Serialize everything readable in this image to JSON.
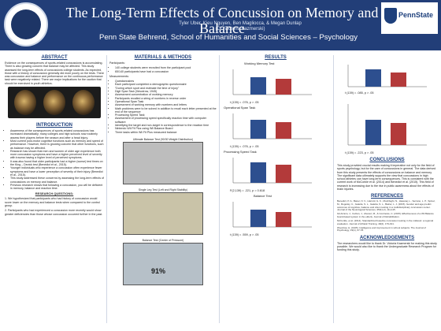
{
  "header": {
    "title": "The Long-Term Effects of Concussion on Memory and Balance",
    "authors": "Tyler Uber, Kieu Nguyen, Ben Magliocca, & Megan Dunlap",
    "advisor": "(Dr. Victoria Kazmerski)",
    "affiliation": "Penn State Behrend, School of Humanities and Social Sciences – Psychology",
    "logo_text": "PennState",
    "header_color": "#223e78",
    "accent_color": "#1e407c"
  },
  "abstract": {
    "heading": "ABSTRACT",
    "text": "Evidence on the consequences of sports-related concussions is accumulating. There is also growing concern that balance may be affected. This study assessed the long-term effects of concussions college students. As expected, those with a history of concussion generally did more poorly on the tests. There was concussion and balance and performance on the continuous performance task were negatively related. There are major implications for the caution that should be exercised in youth athletics."
  },
  "introduction": {
    "heading": "INTRODUCTION",
    "bullets": [
      "Awareness of the consequences of sports-related concussions has increased dramatically; many colleges and high schools now routinely assess their players before the season and after a head injury.",
      "Most current post-motor cognitive functions such as memory and speed of performance. However, there is growing concern that other functions, such as balance may be affected.",
      "Research has shown that men and women of older age experience both more concussion symptoms and have a higher perceived level of severity with trauma having a higher level of perceived symptoms.",
      "It was also found that older participants had a higher (worse) test times on the King – Devick test (Benedict et al., 2015).",
      "Younger individuals who experience a concussion often experience fewer symptoms and have a lower perception of severity of their injury (Benedict et al., 2015).",
      "This study addressed these concerns by assessing the long-term effects of concussions on memory and balance.",
      "Previous research shows that following a concussion, you will be deficient in memory, balance and reaction time."
    ]
  },
  "questions": {
    "heading": "RESEARCH QUESTIONS:",
    "items": [
      "1. We hypothesized that participants who had history of concussion would score lower on the memory and balance tests when compared to the control group.",
      "2. Participants who had experienced a concussion more recently would show greater deficiencies than those whose concussion occurred further in the past."
    ]
  },
  "methods": {
    "heading": "MATERIALS & METHODS",
    "participants_label": "Participants:",
    "participants": [
      "140 college students were recruited from the participant pool",
      "65/140 participants have had a concussion"
    ],
    "measurements_label": "Measurements:",
    "measurements": [
      "Questionnaires",
      "Each participant completed a demographic questionnaire",
      "\"During which sport and estimate the time of injury\"",
      "Digit Span Task (Woodrow, 1945)",
      "Assessment concentration of working memory",
      "Participants recalled a string of numbers in reverse order",
      "Operational Span Task",
      "Assessment of working memory with numbers and letters",
      "Math problems were to be solved in addition to recall each letter presented at the end of the sequence",
      "Processing Speed Task",
      "Assessment of processing speed specifically reaction time with computer software",
      "Identifying the target and non-target in correspondence to the reaction time",
      "Nintendo Wii Fit Plus using Wii Balance Board",
      "Three tasks within Wii Fit Plus measured balance"
    ],
    "photo_labels": [
      "Ultimate Balance Test (90/30 Weight Distribution)",
      "Single Leg Test (Left and Right Stability)",
      "Balance Test (Center of Pressure)"
    ],
    "photo_value": "91%"
  },
  "results": {
    "heading": "RESULTS",
    "charts": [
      {
        "label": "Working Memory Test",
        "stat": "t (139) = .076, p > .05"
      },
      {
        "label": "Digit Span Task",
        "stat": "t (139) = .076, p > .05"
      },
      {
        "label": "Operational Span Task",
        "stat": "t (139) = .076, p > .05"
      },
      {
        "label": "Target Reaction Test",
        "stat": "t (139) = .076, p > .05"
      },
      {
        "label": "Processing Speed Task",
        "stat": "F(2,139) = .221, p = 0.618"
      },
      {
        "label": "Balance Test",
        "stat": "t (139) = .559, p > .05"
      }
    ],
    "right_stats": [
      "t (139) = .085, p > .05",
      "t (139) = .223, p > .05"
    ]
  },
  "conclusions": {
    "heading": "CONCLUSIONS",
    "text": "This study provided crucial results making it imperative not only for the field of sports psychology, but for the care of concussions in general. The data derived from this study presents the effects of concussions on balance and memory. The significant data ultimately supports the view that concussions in high school athletes can have long-term consequences. This is consistent with the current work of McCorkle et al. (2014) and Benedict et al. (2015). This field of research is increasing due to the rise in public awareness about the effects of brain injuries."
  },
  "references": {
    "heading": "REFERENCES",
    "items": [
      "Benedict, P. A., Baner, N. V., Harrold, G. K., Moshfeghi, N., Hasanaj, L., Serrano, L. P., Spinel, M., Rogosky, C., Galetta, S. L., Galetta, S. L., Balcer, L. J. (2015). Gender and age predict outcomes of cognitive, balance and vision testing in a multidisciplinary concussion center. Journal of the Neurological Sciences, 353(1-2), 111-115.",
      "Gil-Arrazu, J., Celzan, J., Alvarez, M., & Contreras, C. (2015). Effectiveness of a Wii Balance board-based system in the elderly. Journal of Rehabilitation.",
      "McCorkle, et al. (2014). Standardized baseline concussion testing in the midwest: a regional evaluation. Journal of Athletic Training, 49(2), 179-191.",
      "Woodrow, H. (1945). Intelligence and improvement in school subjects. The Journal of Psychology, 19(1), 67-78."
    ]
  },
  "acknowledgements": {
    "heading": "ACKNOWLEDGEMENTS",
    "text": "The researchers would like to thank Dr. Victoria Kazmerski for making this study possible. We would also like to thank the Undergraduate Research Program for funding this study."
  }
}
